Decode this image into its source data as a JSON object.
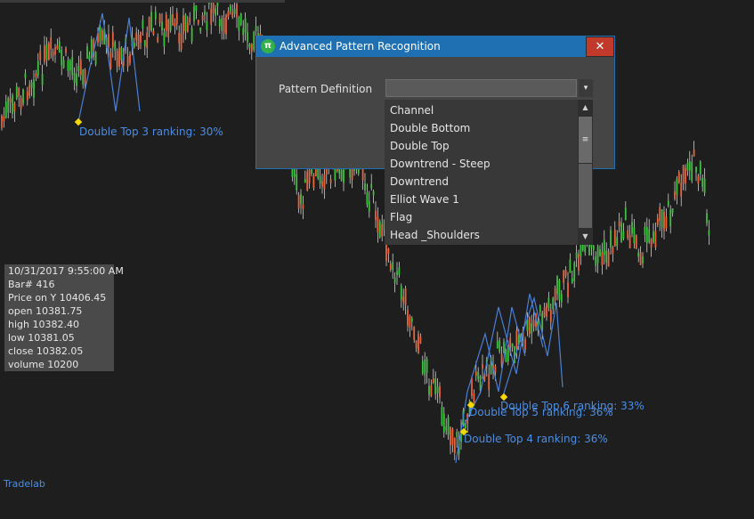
{
  "chart": {
    "brand_label": "Tradelab",
    "pattern_labels": [
      {
        "id": "dt3",
        "text": "Double Top 3 ranking: 30%"
      },
      {
        "id": "dt6",
        "text": "Double Top 6 ranking: 33%"
      },
      {
        "id": "dt5",
        "text": "Double Top 5 ranking: 36%"
      },
      {
        "id": "dt4",
        "text": "Double Top 4 ranking: 36%"
      }
    ],
    "colors": {
      "background": "#1e1e1e",
      "up_candle": "#3fbf3f",
      "down_candle": "#e8643c",
      "wick": "#e6e6e6",
      "pattern_line": "#4a7fd6",
      "marker": "#f5d800"
    }
  },
  "info_panel": {
    "datetime": "10/31/2017 9:55:00 AM",
    "bar": "Bar# 416",
    "price_on_y": "Price on Y  10406.45",
    "open": "open  10381.75",
    "high": "high  10382.40",
    "low": "low  10381.05",
    "close": "close  10382.05",
    "volume": "volume 10200"
  },
  "dialog": {
    "title": "Advanced Pattern Recognition",
    "app_icon": "pi-icon",
    "app_icon_glyph": "π",
    "close_glyph": "✕",
    "field_label": "Pattern Definition",
    "field_value": "",
    "arrow_glyph": "▾",
    "dropdown_items": [
      "Channel",
      "Double Bottom",
      "Double Top",
      "Downtrend - Steep",
      "Downtrend",
      "Elliot Wave 1",
      "Flag",
      "Head _Shoulders"
    ],
    "scroll_up_glyph": "▲",
    "scroll_down_glyph": "▼",
    "scroll_thumb_glyph": "≡"
  }
}
